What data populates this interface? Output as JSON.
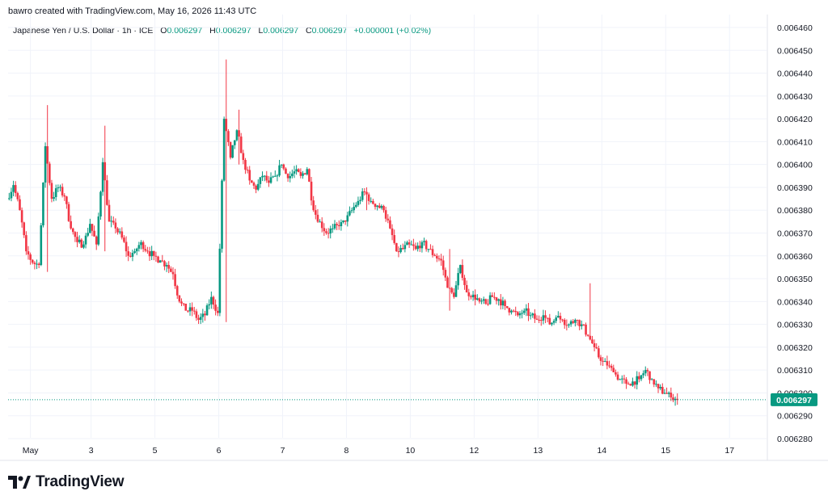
{
  "attribution": "bawro created with TradingView.com, May 16, 2026 11:43 UTC",
  "legend": {
    "symbol": "Japanese Yen / U.S. Dollar · 1h · ICE",
    "open_label": "O",
    "open": "0.006297",
    "high_label": "H",
    "high": "0.006297",
    "low_label": "L",
    "low": "0.006297",
    "close_label": "C",
    "close": "0.006297",
    "change": "+0.000001 (+0.02%)"
  },
  "brand": "TradingView",
  "colors": {
    "up": "#089981",
    "down": "#f23645",
    "grid": "#f0f3fa",
    "price_tag": "#089981"
  },
  "chart_data": {
    "type": "candlestick",
    "interval": "1h",
    "y_ticks": [
      "0.006460",
      "0.006450",
      "0.006440",
      "0.006430",
      "0.006420",
      "0.006410",
      "0.006400",
      "0.006390",
      "0.006380",
      "0.006370",
      "0.006360",
      "0.006350",
      "0.006340",
      "0.006330",
      "0.006320",
      "0.006310",
      "0.006300",
      "0.006290",
      "0.006280"
    ],
    "ylim": [
      0.00628,
      0.00646
    ],
    "x_ticks": [
      {
        "label": "May",
        "x": 0.5
      },
      {
        "label": "3",
        "x": 10
      },
      {
        "label": "5",
        "x": 20
      },
      {
        "label": "6",
        "x": 30
      },
      {
        "label": "7",
        "x": 40
      },
      {
        "label": "8",
        "x": 50
      },
      {
        "label": "10",
        "x": 60
      },
      {
        "label": "12",
        "x": 70
      },
      {
        "label": "13",
        "x": 80
      },
      {
        "label": "14",
        "x": 90
      },
      {
        "label": "15",
        "x": 100
      },
      {
        "label": "17",
        "x": 110
      }
    ],
    "x_range": [
      -3,
      112
    ],
    "last_price": 0.006297,
    "last_price_label": "0.006297",
    "path": [
      [
        -3,
        0.006385
      ],
      [
        -2,
        0.006391
      ],
      [
        -1,
        0.00638
      ],
      [
        0,
        0.006362
      ],
      [
        1,
        0.006357
      ],
      [
        2,
        0.006356
      ],
      [
        3,
        0.006408
      ],
      [
        4,
        0.006385
      ],
      [
        5,
        0.00639
      ],
      [
        6,
        0.006386
      ],
      [
        7,
        0.006372
      ],
      [
        8,
        0.006366
      ],
      [
        9,
        0.006365
      ],
      [
        10,
        0.006374
      ],
      [
        11,
        0.006365
      ],
      [
        12,
        0.006401
      ],
      [
        13,
        0.006375
      ],
      [
        14,
        0.006372
      ],
      [
        15,
        0.006368
      ],
      [
        16,
        0.00636
      ],
      [
        17,
        0.006362
      ],
      [
        18,
        0.006366
      ],
      [
        19,
        0.006362
      ],
      [
        20,
        0.00636
      ],
      [
        21,
        0.006358
      ],
      [
        22,
        0.006356
      ],
      [
        23,
        0.006352
      ],
      [
        24,
        0.00634
      ],
      [
        25,
        0.006336
      ],
      [
        26,
        0.006336
      ],
      [
        27,
        0.006332
      ],
      [
        28,
        0.006334
      ],
      [
        29,
        0.006342
      ],
      [
        30,
        0.006335
      ],
      [
        31,
        0.00642
      ],
      [
        32,
        0.006403
      ],
      [
        33,
        0.006415
      ],
      [
        34,
        0.006402
      ],
      [
        35,
        0.006393
      ],
      [
        36,
        0.006389
      ],
      [
        37,
        0.006395
      ],
      [
        38,
        0.006392
      ],
      [
        39,
        0.006395
      ],
      [
        40,
        0.0064
      ],
      [
        41,
        0.006394
      ],
      [
        42,
        0.006397
      ],
      [
        43,
        0.006395
      ],
      [
        44,
        0.006398
      ],
      [
        45,
        0.00638
      ],
      [
        46,
        0.006375
      ],
      [
        47,
        0.00637
      ],
      [
        48,
        0.006372
      ],
      [
        49,
        0.006373
      ],
      [
        50,
        0.006375
      ],
      [
        51,
        0.00638
      ],
      [
        52,
        0.006384
      ],
      [
        53,
        0.006388
      ],
      [
        54,
        0.006384
      ],
      [
        55,
        0.006382
      ],
      [
        56,
        0.00638
      ],
      [
        57,
        0.006372
      ],
      [
        58,
        0.006362
      ],
      [
        59,
        0.006363
      ],
      [
        60,
        0.006365
      ],
      [
        61,
        0.006363
      ],
      [
        62,
        0.006366
      ],
      [
        63,
        0.006363
      ],
      [
        64,
        0.00636
      ],
      [
        65,
        0.006358
      ],
      [
        66,
        0.006346
      ],
      [
        67,
        0.006342
      ],
      [
        68,
        0.006356
      ],
      [
        69,
        0.006344
      ],
      [
        70,
        0.006343
      ],
      [
        71,
        0.00634
      ],
      [
        72,
        0.006339
      ],
      [
        73,
        0.006342
      ],
      [
        74,
        0.006341
      ],
      [
        75,
        0.006338
      ],
      [
        76,
        0.006336
      ],
      [
        77,
        0.006334
      ],
      [
        78,
        0.006336
      ],
      [
        79,
        0.006334
      ],
      [
        80,
        0.006332
      ],
      [
        81,
        0.006334
      ],
      [
        82,
        0.00633
      ],
      [
        83,
        0.006333
      ],
      [
        84,
        0.006332
      ],
      [
        85,
        0.00633
      ],
      [
        86,
        0.006332
      ],
      [
        87,
        0.00633
      ],
      [
        88,
        0.006325
      ],
      [
        89,
        0.00632
      ],
      [
        90,
        0.006314
      ],
      [
        91,
        0.006312
      ],
      [
        92,
        0.006309
      ],
      [
        93,
        0.006306
      ],
      [
        94,
        0.006304
      ],
      [
        95,
        0.006305
      ],
      [
        96,
        0.006306
      ],
      [
        97,
        0.00631
      ],
      [
        98,
        0.006306
      ],
      [
        99,
        0.006302
      ],
      [
        100,
        0.0063
      ],
      [
        101,
        0.006298
      ],
      [
        102,
        0.006297
      ]
    ],
    "spikes": [
      [
        3,
        0.006426,
        0.006353
      ],
      [
        12,
        0.006417,
        0.006362
      ],
      [
        31,
        0.006446,
        0.006331
      ],
      [
        33,
        0.006424,
        0.0064
      ],
      [
        66,
        0.006363,
        0.006336
      ],
      [
        88,
        0.006348,
        0.006325
      ],
      [
        53,
        0.00639,
        0.00638
      ]
    ]
  }
}
